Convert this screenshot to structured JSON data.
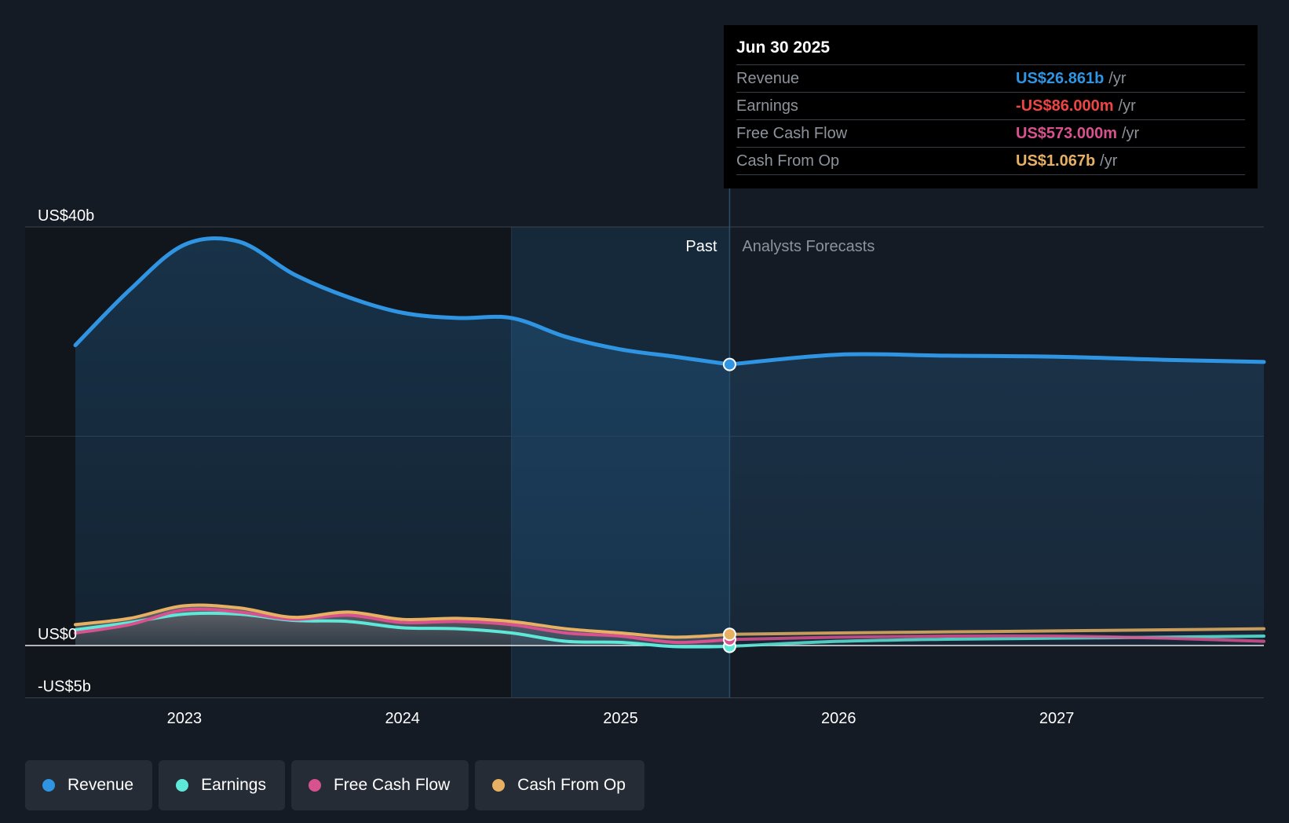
{
  "chart_data": {
    "type": "area",
    "title": "",
    "y_unit": "US$ billions",
    "ylim": [
      -5,
      40
    ],
    "y_tick_labels": [
      {
        "value": 40,
        "label": "US$40b"
      },
      {
        "value": 0,
        "label": "US$0"
      },
      {
        "value": -5,
        "label": "-US$5b"
      }
    ],
    "x_range": [
      2022.5,
      2027.95
    ],
    "x_ticks": [
      {
        "value": 2023,
        "label": "2023"
      },
      {
        "value": 2024,
        "label": "2024"
      },
      {
        "value": 2025,
        "label": "2025"
      },
      {
        "value": 2026,
        "label": "2026"
      },
      {
        "value": 2027,
        "label": "2027"
      }
    ],
    "shaded_from": 2024.5,
    "divider_x": 2025.5,
    "past_label": "Past",
    "forecast_label": "Analysts Forecasts",
    "series": [
      {
        "name": "Revenue",
        "color": "#2f95e3",
        "past": [
          [
            2022.5,
            28.7
          ],
          [
            2022.75,
            34
          ],
          [
            2023.0,
            38.3
          ],
          [
            2023.25,
            38.6
          ],
          [
            2023.5,
            35.5
          ],
          [
            2023.75,
            33.3
          ],
          [
            2024.0,
            31.8
          ],
          [
            2024.25,
            31.3
          ],
          [
            2024.5,
            31.3
          ],
          [
            2024.75,
            29.5
          ],
          [
            2025.0,
            28.3
          ],
          [
            2025.25,
            27.6
          ],
          [
            2025.5,
            26.861
          ]
        ],
        "forecast": [
          [
            2025.5,
            26.861
          ],
          [
            2026.0,
            27.8
          ],
          [
            2026.5,
            27.7
          ],
          [
            2027.0,
            27.6
          ],
          [
            2027.5,
            27.3
          ],
          [
            2027.95,
            27.1
          ]
        ]
      },
      {
        "name": "Earnings",
        "color": "#5ee8d8",
        "past": [
          [
            2022.5,
            1.5
          ],
          [
            2022.75,
            2.2
          ],
          [
            2023.0,
            3.0
          ],
          [
            2023.25,
            3.0
          ],
          [
            2023.5,
            2.4
          ],
          [
            2023.75,
            2.3
          ],
          [
            2024.0,
            1.7
          ],
          [
            2024.25,
            1.6
          ],
          [
            2024.5,
            1.2
          ],
          [
            2024.75,
            0.4
          ],
          [
            2025.0,
            0.3
          ],
          [
            2025.25,
            -0.1
          ],
          [
            2025.5,
            -0.086
          ]
        ],
        "forecast": [
          [
            2025.5,
            -0.086
          ],
          [
            2026.0,
            0.4
          ],
          [
            2026.5,
            0.6
          ],
          [
            2027.0,
            0.7
          ],
          [
            2027.5,
            0.8
          ],
          [
            2027.95,
            0.9
          ]
        ]
      },
      {
        "name": "Free Cash Flow",
        "color": "#d8528f",
        "past": [
          [
            2022.5,
            1.2
          ],
          [
            2022.75,
            2.0
          ],
          [
            2023.0,
            3.4
          ],
          [
            2023.25,
            3.2
          ],
          [
            2023.5,
            2.5
          ],
          [
            2023.75,
            2.9
          ],
          [
            2024.0,
            2.2
          ],
          [
            2024.25,
            2.3
          ],
          [
            2024.5,
            2.0
          ],
          [
            2024.75,
            1.2
          ],
          [
            2025.0,
            0.9
          ],
          [
            2025.25,
            0.3
          ],
          [
            2025.5,
            0.573
          ]
        ],
        "forecast": [
          [
            2025.5,
            0.573
          ],
          [
            2026.0,
            0.8
          ],
          [
            2026.5,
            0.9
          ],
          [
            2027.0,
            0.9
          ],
          [
            2027.5,
            0.7
          ],
          [
            2027.95,
            0.4
          ]
        ]
      },
      {
        "name": "Cash From Op",
        "color": "#e8b062",
        "past": [
          [
            2022.5,
            2.0
          ],
          [
            2022.75,
            2.6
          ],
          [
            2023.0,
            3.8
          ],
          [
            2023.25,
            3.6
          ],
          [
            2023.5,
            2.7
          ],
          [
            2023.75,
            3.2
          ],
          [
            2024.0,
            2.5
          ],
          [
            2024.25,
            2.6
          ],
          [
            2024.5,
            2.3
          ],
          [
            2024.75,
            1.6
          ],
          [
            2025.0,
            1.2
          ],
          [
            2025.25,
            0.8
          ],
          [
            2025.5,
            1.067
          ]
        ],
        "forecast": [
          [
            2025.5,
            1.067
          ],
          [
            2026.0,
            1.2
          ],
          [
            2026.5,
            1.3
          ],
          [
            2027.0,
            1.4
          ],
          [
            2027.5,
            1.5
          ],
          [
            2027.95,
            1.6
          ]
        ]
      }
    ]
  },
  "tooltip": {
    "date": "Jun 30 2025",
    "rows": [
      {
        "label": "Revenue",
        "value": "US$26.861b",
        "unit": "/yr",
        "color": "#2f95e3"
      },
      {
        "label": "Earnings",
        "value": "-US$86.000m",
        "unit": "/yr",
        "color": "#ef4545"
      },
      {
        "label": "Free Cash Flow",
        "value": "US$573.000m",
        "unit": "/yr",
        "color": "#d8528f"
      },
      {
        "label": "Cash From Op",
        "value": "US$1.067b",
        "unit": "/yr",
        "color": "#e8b062"
      }
    ]
  },
  "legend": [
    {
      "label": "Revenue",
      "color": "#2f95e3"
    },
    {
      "label": "Earnings",
      "color": "#5ee8d8"
    },
    {
      "label": "Free Cash Flow",
      "color": "#d8528f"
    },
    {
      "label": "Cash From Op",
      "color": "#e8b062"
    }
  ]
}
